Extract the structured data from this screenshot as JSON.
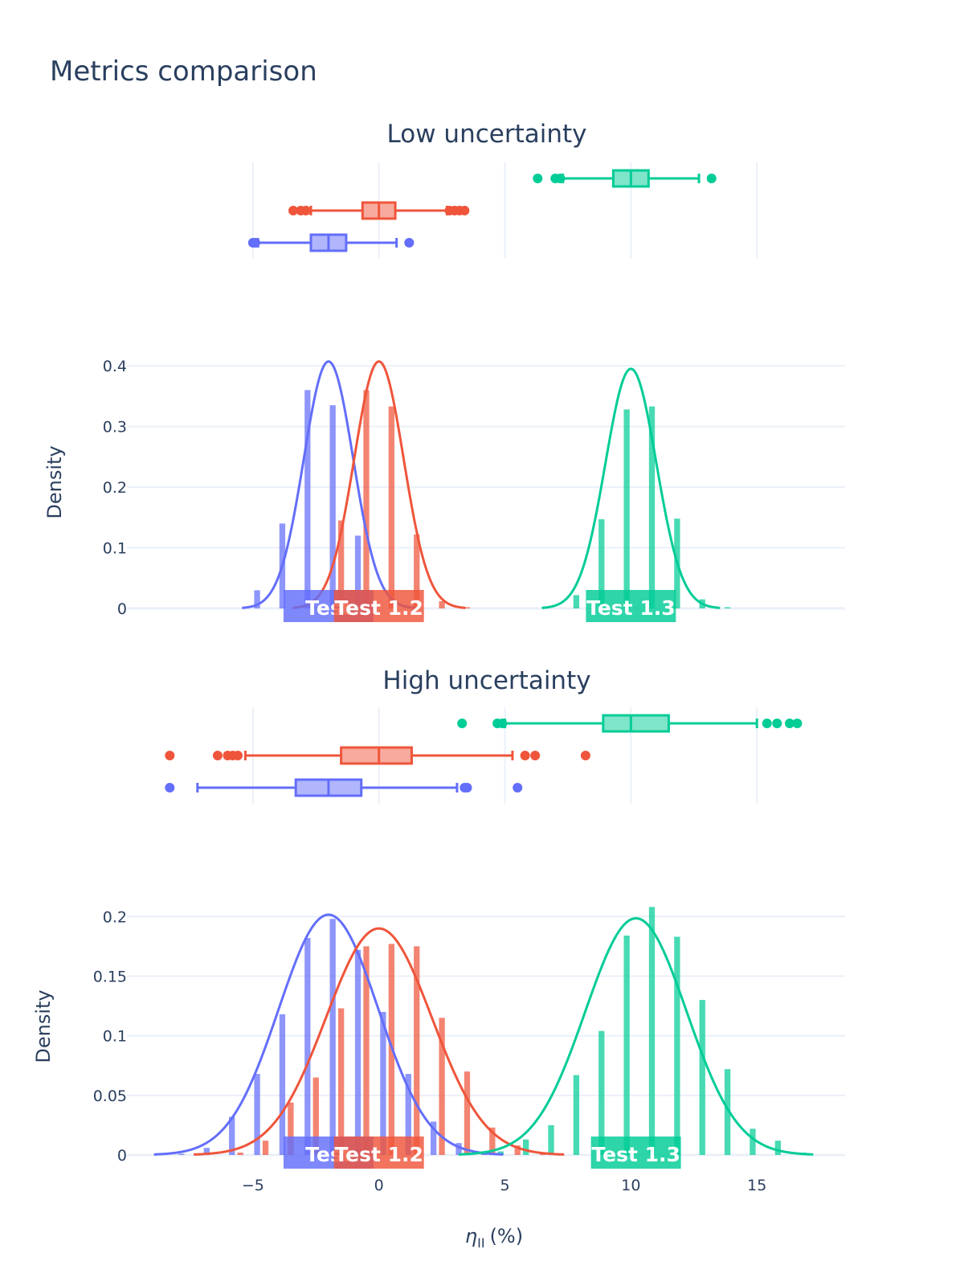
{
  "chart_data": {
    "title": "Metrics comparison",
    "xlabel": "η_II (%)",
    "xlabel_symbol": "η",
    "xlabel_sub": "II",
    "xlabel_unit": "(%)",
    "x_ticks": [
      "−5",
      "0",
      "5",
      "10",
      "15"
    ],
    "x_tick_values": [
      -5,
      0,
      5,
      10,
      15
    ],
    "xlim": [
      -10,
      18.5
    ],
    "series": [
      {
        "name": "Test 1.1",
        "color": "#636efa"
      },
      {
        "name": "Test 1.2",
        "color": "#ef553b"
      },
      {
        "name": "Test 1.3",
        "color": "#00cc96"
      }
    ],
    "panels": [
      {
        "name": "Low uncertainty",
        "type": "histogram+kde+box",
        "ylabel": "Density",
        "ylim": [
          0,
          0.42
        ],
        "y_ticks": [
          0,
          0.1,
          0.2,
          0.3,
          0.4
        ],
        "y_tick_labels": [
          "0",
          "0.1",
          "0.2",
          "0.3",
          "0.4"
        ],
        "bin_width": 1,
        "series": [
          {
            "name": "Test 1.1",
            "mean": -2,
            "std": 0.98,
            "bins_start": -5,
            "hist": [
              0.03,
              0.14,
              0.36,
              0.335,
              0.12
            ],
            "box": {
              "q1": -2.7,
              "median": -2.0,
              "q3": -1.3,
              "lower_fence": -4.8,
              "upper_fence": 0.7,
              "outliers": [
                -5.0,
                -4.9,
                1.2
              ]
            }
          },
          {
            "name": "Test 1.2",
            "mean": 0,
            "std": 0.98,
            "bins_start": -3,
            "hist": [
              0.002,
              0.145,
              0.36,
              0.333,
              0.122,
              0.012,
              0.002
            ],
            "box": {
              "q1": -0.65,
              "median": 0.0,
              "q3": 0.65,
              "lower_fence": -2.7,
              "upper_fence": 2.7,
              "outliers": [
                -3.4,
                -3.1,
                -2.9,
                2.8,
                3.0,
                3.2,
                3.4
              ]
            }
          },
          {
            "name": "Test 1.3",
            "mean": 10,
            "std": 1.01,
            "bins_start": 7,
            "hist": [
              0.022,
              0.147,
              0.328,
              0.333,
              0.148,
              0.015,
              0.002
            ],
            "box": {
              "q1": 9.3,
              "median": 10.0,
              "q3": 10.7,
              "lower_fence": 7.3,
              "upper_fence": 12.7,
              "outliers": [
                6.3,
                7.0,
                7.2,
                13.2
              ]
            }
          }
        ]
      },
      {
        "name": "High uncertainty",
        "type": "histogram+kde+box",
        "ylabel": "Density",
        "ylim": [
          0,
          0.215
        ],
        "y_ticks": [
          0,
          0.05,
          0.1,
          0.15,
          0.2
        ],
        "y_tick_labels": [
          "0",
          "0.05",
          "0.1",
          "0.15",
          "0.2"
        ],
        "bin_width": 1,
        "series": [
          {
            "name": "Test 1.1",
            "mean": -2,
            "std": 1.98,
            "bins_start": -8,
            "hist": [
              0.001,
              0.006,
              0.032,
              0.068,
              0.118,
              0.182,
              0.198,
              0.172,
              0.12,
              0.068,
              0.028,
              0.01,
              0.002
            ],
            "box": {
              "q1": -3.3,
              "median": -2.0,
              "q3": -0.7,
              "lower_fence": -7.2,
              "upper_fence": 3.1,
              "outliers": [
                -8.3,
                3.4,
                3.5,
                5.5
              ]
            }
          },
          {
            "name": "Test 1.2",
            "mean": 0,
            "std": 2.1,
            "bins_start": -6,
            "hist": [
              0.002,
              0.012,
              0.044,
              0.065,
              0.123,
              0.175,
              0.177,
              0.175,
              0.115,
              0.07,
              0.023,
              0.008,
              0.001
            ],
            "box": {
              "q1": -1.5,
              "median": 0.0,
              "q3": 1.3,
              "lower_fence": -5.3,
              "upper_fence": 5.3,
              "outliers": [
                -8.3,
                -6.4,
                -6.0,
                -5.8,
                -5.6,
                5.8,
                6.2,
                8.2
              ]
            }
          },
          {
            "name": "Test 1.3",
            "mean": 10.2,
            "std": 2.01,
            "bins_start": 4,
            "hist": [
              0.003,
              0.013,
              0.025,
              0.067,
              0.104,
              0.184,
              0.208,
              0.183,
              0.13,
              0.072,
              0.022,
              0.012,
              0.002
            ],
            "box": {
              "q1": 8.9,
              "median": 10.0,
              "q3": 11.5,
              "lower_fence": 5.0,
              "upper_fence": 15.0,
              "outliers": [
                3.3,
                4.7,
                4.9,
                15.4,
                15.8,
                16.3,
                16.6
              ]
            }
          }
        ]
      }
    ],
    "label_names": [
      "Test",
      "Test 1.2",
      "Test 1.3"
    ]
  }
}
